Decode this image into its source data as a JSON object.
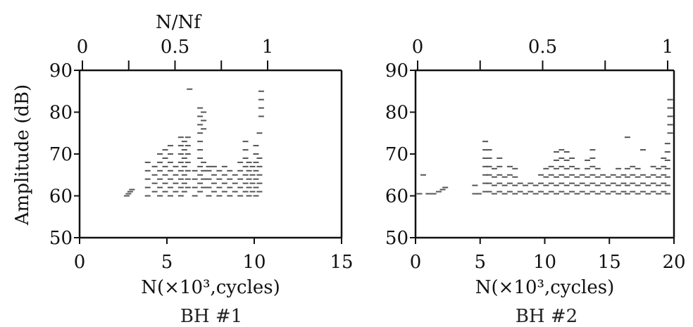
{
  "chart_data": [
    {
      "type": "scatter",
      "title": "BH #1",
      "xlabel": "N(×10³,cycles)",
      "ylabel": "Amplitude (dB)",
      "top_xlabel": "N/Nf",
      "xlim": [
        0,
        15
      ],
      "ylim": [
        50,
        90
      ],
      "top_xlim": [
        0,
        1
      ],
      "xticks": [
        "0",
        "5",
        "10",
        "15"
      ],
      "yticks": [
        "50",
        "60",
        "70",
        "80",
        "90"
      ],
      "top_xticks": [
        "0",
        "0.5",
        "1"
      ],
      "grid": false,
      "points": [
        [
          2.7,
          60
        ],
        [
          2.8,
          60.5
        ],
        [
          2.9,
          61
        ],
        [
          3.0,
          61.5
        ],
        [
          3.9,
          60
        ],
        [
          3.9,
          62
        ],
        [
          3.9,
          64
        ],
        [
          3.9,
          66
        ],
        [
          3.9,
          68
        ],
        [
          4.3,
          61
        ],
        [
          4.3,
          63
        ],
        [
          4.3,
          65
        ],
        [
          4.3,
          67
        ],
        [
          4.6,
          60
        ],
        [
          4.6,
          62
        ],
        [
          4.6,
          64
        ],
        [
          4.6,
          66
        ],
        [
          4.6,
          68
        ],
        [
          4.6,
          70
        ],
        [
          4.9,
          61
        ],
        [
          4.9,
          63
        ],
        [
          4.9,
          65
        ],
        [
          4.9,
          67
        ],
        [
          4.9,
          69
        ],
        [
          4.9,
          71
        ],
        [
          5.2,
          60
        ],
        [
          5.2,
          62
        ],
        [
          5.2,
          64
        ],
        [
          5.2,
          66
        ],
        [
          5.2,
          68
        ],
        [
          5.2,
          70
        ],
        [
          5.2,
          72
        ],
        [
          5.5,
          61
        ],
        [
          5.5,
          63
        ],
        [
          5.5,
          65
        ],
        [
          5.5,
          67
        ],
        [
          5.8,
          60
        ],
        [
          5.8,
          62
        ],
        [
          5.8,
          64
        ],
        [
          5.8,
          66
        ],
        [
          5.8,
          68
        ],
        [
          5.8,
          70
        ],
        [
          5.8,
          72
        ],
        [
          5.8,
          74
        ],
        [
          6.0,
          61
        ],
        [
          6.0,
          63
        ],
        [
          6.0,
          65
        ],
        [
          6.0,
          67
        ],
        [
          6.0,
          69
        ],
        [
          6.0,
          71
        ],
        [
          6.0,
          73
        ],
        [
          6.2,
          62
        ],
        [
          6.2,
          64
        ],
        [
          6.2,
          66
        ],
        [
          6.2,
          68
        ],
        [
          6.2,
          70
        ],
        [
          6.2,
          72
        ],
        [
          6.2,
          74
        ],
        [
          6.3,
          85.5
        ],
        [
          6.6,
          60
        ],
        [
          6.6,
          62
        ],
        [
          6.6,
          64
        ],
        [
          6.6,
          66
        ],
        [
          6.9,
          61
        ],
        [
          6.9,
          63
        ],
        [
          6.9,
          65
        ],
        [
          6.9,
          67
        ],
        [
          6.9,
          69
        ],
        [
          6.9,
          71
        ],
        [
          6.9,
          73
        ],
        [
          6.9,
          75
        ],
        [
          6.9,
          77
        ],
        [
          6.9,
          79
        ],
        [
          6.9,
          81
        ],
        [
          7.1,
          62
        ],
        [
          7.1,
          64
        ],
        [
          7.1,
          66
        ],
        [
          7.1,
          68
        ],
        [
          7.1,
          76
        ],
        [
          7.1,
          78
        ],
        [
          7.1,
          80
        ],
        [
          7.4,
          60
        ],
        [
          7.4,
          62
        ],
        [
          7.4,
          64
        ],
        [
          7.4,
          66
        ],
        [
          7.4,
          67
        ],
        [
          7.7,
          61
        ],
        [
          7.7,
          63
        ],
        [
          7.7,
          65
        ],
        [
          7.7,
          67
        ],
        [
          8.0,
          60
        ],
        [
          8.0,
          62
        ],
        [
          8.0,
          64
        ],
        [
          8.0,
          66
        ],
        [
          8.3,
          61
        ],
        [
          8.3,
          63
        ],
        [
          8.3,
          65
        ],
        [
          8.3,
          67
        ],
        [
          8.6,
          60
        ],
        [
          8.6,
          62
        ],
        [
          8.6,
          64
        ],
        [
          8.6,
          66
        ],
        [
          8.9,
          61
        ],
        [
          8.9,
          63
        ],
        [
          8.9,
          65
        ],
        [
          9.2,
          60
        ],
        [
          9.2,
          62
        ],
        [
          9.2,
          64
        ],
        [
          9.2,
          66
        ],
        [
          9.2,
          68
        ],
        [
          9.5,
          61
        ],
        [
          9.5,
          63
        ],
        [
          9.5,
          65
        ],
        [
          9.5,
          67
        ],
        [
          9.5,
          69
        ],
        [
          9.5,
          71
        ],
        [
          9.5,
          73
        ],
        [
          9.7,
          60
        ],
        [
          9.7,
          62
        ],
        [
          9.7,
          64
        ],
        [
          9.7,
          66
        ],
        [
          9.7,
          68
        ],
        [
          9.9,
          61
        ],
        [
          9.9,
          63
        ],
        [
          9.9,
          65
        ],
        [
          9.9,
          67
        ],
        [
          10.1,
          60
        ],
        [
          10.1,
          62
        ],
        [
          10.1,
          64
        ],
        [
          10.1,
          66
        ],
        [
          10.1,
          68
        ],
        [
          10.1,
          70
        ],
        [
          10.1,
          72
        ],
        [
          10.3,
          61
        ],
        [
          10.3,
          63
        ],
        [
          10.3,
          65
        ],
        [
          10.3,
          67
        ],
        [
          10.3,
          69
        ],
        [
          10.3,
          75
        ],
        [
          10.4,
          79
        ],
        [
          10.4,
          81
        ],
        [
          10.4,
          83
        ],
        [
          10.4,
          85
        ]
      ]
    },
    {
      "type": "scatter",
      "title": "BH #2",
      "xlabel": "N(×10³,cycles)",
      "ylabel": "",
      "top_xlabel": "",
      "xlim": [
        0,
        20
      ],
      "ylim": [
        50,
        90
      ],
      "top_xlim": [
        0,
        1
      ],
      "xticks": [
        "0",
        "5",
        "10",
        "15",
        "20"
      ],
      "yticks": [
        "50",
        "60",
        "70",
        "80",
        "90"
      ],
      "top_xticks": [
        "0",
        "0.5",
        "1"
      ],
      "grid": false,
      "points": [
        [
          0.3,
          60.5
        ],
        [
          0.6,
          65
        ],
        [
          1.0,
          60.5
        ],
        [
          1.4,
          60.5
        ],
        [
          1.8,
          61
        ],
        [
          2.1,
          61.5
        ],
        [
          2.3,
          62
        ],
        [
          4.6,
          60.5
        ],
        [
          4.6,
          62.5
        ],
        [
          4.9,
          60.5
        ],
        [
          5.4,
          61
        ],
        [
          5.4,
          63
        ],
        [
          5.4,
          65
        ],
        [
          5.4,
          67
        ],
        [
          5.4,
          69
        ],
        [
          5.4,
          71
        ],
        [
          5.4,
          73
        ],
        [
          5.7,
          61
        ],
        [
          5.7,
          63
        ],
        [
          5.7,
          65
        ],
        [
          5.7,
          67
        ],
        [
          5.7,
          69
        ],
        [
          5.7,
          71
        ],
        [
          6.1,
          60.5
        ],
        [
          6.1,
          62.5
        ],
        [
          6.1,
          64.5
        ],
        [
          6.1,
          66.5
        ],
        [
          6.5,
          61
        ],
        [
          6.5,
          63
        ],
        [
          6.5,
          65
        ],
        [
          6.5,
          67
        ],
        [
          6.5,
          69
        ],
        [
          6.9,
          60.5
        ],
        [
          6.9,
          62.5
        ],
        [
          6.9,
          64.5
        ],
        [
          7.3,
          61
        ],
        [
          7.3,
          63
        ],
        [
          7.3,
          65
        ],
        [
          7.3,
          67
        ],
        [
          7.7,
          60.5
        ],
        [
          7.7,
          62.5
        ],
        [
          7.7,
          64.5
        ],
        [
          7.7,
          66.5
        ],
        [
          8.1,
          61
        ],
        [
          8.1,
          63
        ],
        [
          8.5,
          60.5
        ],
        [
          8.5,
          62.5
        ],
        [
          8.9,
          61
        ],
        [
          8.9,
          63
        ],
        [
          9.3,
          60.5
        ],
        [
          9.3,
          62.5
        ],
        [
          9.7,
          61
        ],
        [
          9.7,
          63
        ],
        [
          9.7,
          65
        ],
        [
          10.1,
          60.5
        ],
        [
          10.1,
          62.5
        ],
        [
          10.1,
          64.5
        ],
        [
          10.1,
          66.5
        ],
        [
          10.5,
          61
        ],
        [
          10.5,
          63
        ],
        [
          10.5,
          65
        ],
        [
          10.5,
          67
        ],
        [
          10.9,
          60.5
        ],
        [
          10.9,
          62.5
        ],
        [
          10.9,
          64.5
        ],
        [
          10.9,
          66.5
        ],
        [
          10.9,
          68.5
        ],
        [
          10.9,
          70.5
        ],
        [
          11.3,
          61
        ],
        [
          11.3,
          63
        ],
        [
          11.3,
          65
        ],
        [
          11.3,
          67
        ],
        [
          11.3,
          69
        ],
        [
          11.3,
          71
        ],
        [
          11.7,
          60.5
        ],
        [
          11.7,
          62.5
        ],
        [
          11.7,
          64.5
        ],
        [
          11.7,
          66.5
        ],
        [
          11.7,
          68.5
        ],
        [
          11.7,
          70.5
        ],
        [
          12.1,
          61
        ],
        [
          12.1,
          63
        ],
        [
          12.1,
          65
        ],
        [
          12.1,
          67
        ],
        [
          12.1,
          69
        ],
        [
          12.5,
          60.5
        ],
        [
          12.5,
          62.5
        ],
        [
          12.5,
          64.5
        ],
        [
          12.5,
          66.5
        ],
        [
          12.9,
          61
        ],
        [
          12.9,
          63
        ],
        [
          12.9,
          65
        ],
        [
          13.3,
          60.5
        ],
        [
          13.3,
          62.5
        ],
        [
          13.3,
          64.5
        ],
        [
          13.3,
          66.5
        ],
        [
          13.3,
          68.5
        ],
        [
          13.7,
          61
        ],
        [
          13.7,
          63
        ],
        [
          13.7,
          65
        ],
        [
          13.7,
          67
        ],
        [
          13.7,
          69
        ],
        [
          13.7,
          71
        ],
        [
          14.1,
          60.5
        ],
        [
          14.1,
          62.5
        ],
        [
          14.1,
          64.5
        ],
        [
          14.1,
          66.5
        ],
        [
          14.5,
          61
        ],
        [
          14.5,
          63
        ],
        [
          14.5,
          65
        ],
        [
          14.9,
          60.5
        ],
        [
          14.9,
          62.5
        ],
        [
          14.9,
          64.5
        ],
        [
          15.3,
          61
        ],
        [
          15.3,
          63
        ],
        [
          15.3,
          65
        ],
        [
          15.7,
          60.5
        ],
        [
          15.7,
          62.5
        ],
        [
          15.7,
          64.5
        ],
        [
          15.7,
          66.5
        ],
        [
          16.1,
          61
        ],
        [
          16.1,
          63
        ],
        [
          16.1,
          65
        ],
        [
          16.4,
          60.5
        ],
        [
          16.4,
          62.5
        ],
        [
          16.4,
          64.5
        ],
        [
          16.4,
          66.5
        ],
        [
          16.4,
          74
        ],
        [
          16.8,
          61
        ],
        [
          16.8,
          63
        ],
        [
          16.8,
          65
        ],
        [
          16.8,
          67
        ],
        [
          17.2,
          60.5
        ],
        [
          17.2,
          62.5
        ],
        [
          17.2,
          64.5
        ],
        [
          17.2,
          66.5
        ],
        [
          17.6,
          61
        ],
        [
          17.6,
          63
        ],
        [
          17.6,
          65
        ],
        [
          17.6,
          71
        ],
        [
          18.0,
          60.5
        ],
        [
          18.0,
          62.5
        ],
        [
          18.0,
          64.5
        ],
        [
          18.4,
          61
        ],
        [
          18.4,
          63
        ],
        [
          18.4,
          65
        ],
        [
          18.4,
          67
        ],
        [
          18.8,
          60.5
        ],
        [
          18.8,
          62.5
        ],
        [
          18.8,
          64.5
        ],
        [
          18.8,
          66.5
        ],
        [
          19.2,
          61
        ],
        [
          19.2,
          63
        ],
        [
          19.2,
          65
        ],
        [
          19.2,
          67
        ],
        [
          19.2,
          69
        ],
        [
          19.5,
          60.5
        ],
        [
          19.5,
          62.5
        ],
        [
          19.5,
          64.5
        ],
        [
          19.5,
          66.5
        ],
        [
          19.5,
          68.5
        ],
        [
          19.5,
          70.5
        ],
        [
          19.5,
          72.5
        ],
        [
          19.7,
          75
        ],
        [
          19.7,
          77
        ],
        [
          19.7,
          79
        ],
        [
          19.7,
          81
        ],
        [
          19.7,
          83
        ]
      ]
    }
  ]
}
